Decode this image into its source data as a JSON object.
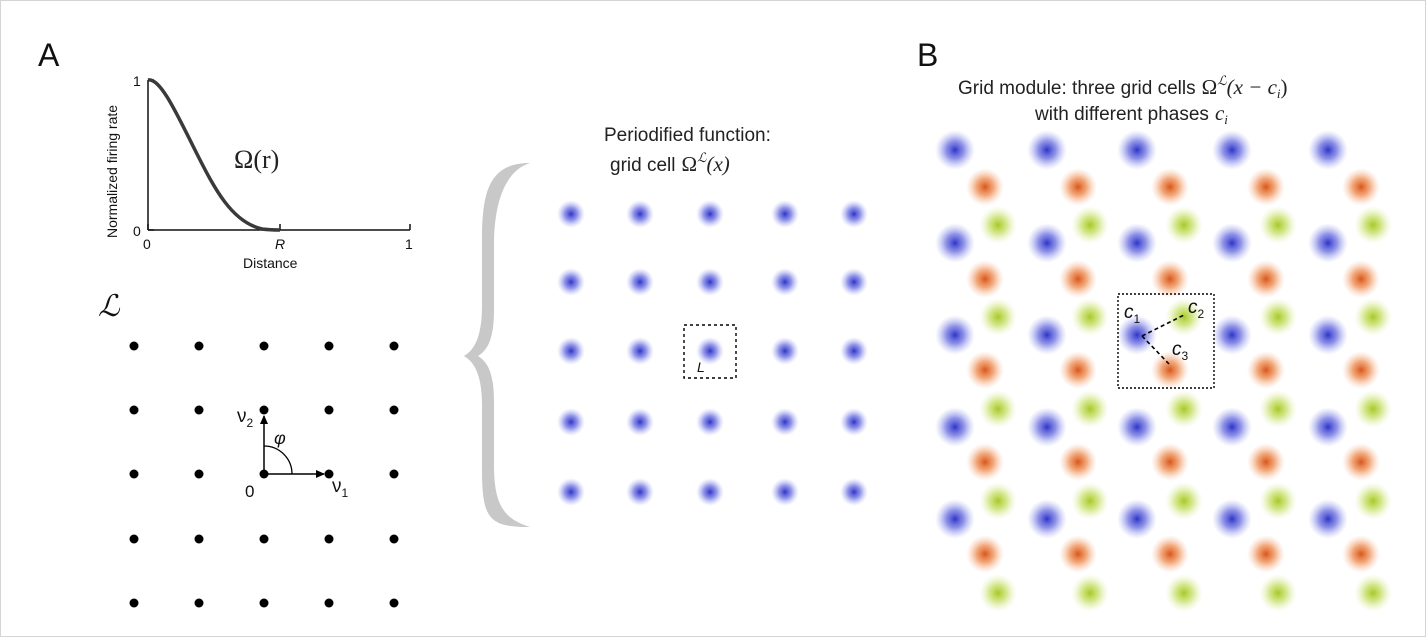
{
  "panelA": {
    "label": "A",
    "curve_label": "Ω(r)",
    "y_axis_label": "Normalized firing rate",
    "y_tick_1": "1",
    "y_tick_0": "0",
    "x_tick_0": "0",
    "x_tick_R": "R",
    "x_tick_1": "1",
    "x_axis_label": "Distance",
    "lattice_symbol": "ℒ",
    "v2_label": "ν",
    "v2_sub": "2",
    "v1_label": "ν",
    "v1_sub": "1",
    "angle_label": "φ",
    "origin_label": "0",
    "periodified_title_1": "Periodified function:",
    "periodified_title_2": "grid cell",
    "periodified_math": "Ω",
    "periodified_sup": "ℒ",
    "periodified_arg": "(x)",
    "cell_label": "L"
  },
  "panelB": {
    "label": "B",
    "title_1": "Grid module: three grid cells",
    "title_math": "Ω",
    "title_sup": "ℒ",
    "title_arg": "(x − c",
    "title_arg_sub": "i",
    "title_arg_end": ")",
    "title_2": "with different phases",
    "title_2_math": "c",
    "title_2_sub": "i",
    "c1": "c",
    "c1_sub": "1",
    "c2": "c",
    "c2_sub": "2",
    "c3": "c",
    "c3_sub": "3"
  },
  "colors": {
    "blue": "#5b5fd6",
    "orange": "#e2702e",
    "green": "#b4d23c",
    "curve": "#3a3a3a",
    "brace": "#c8c8c8"
  }
}
